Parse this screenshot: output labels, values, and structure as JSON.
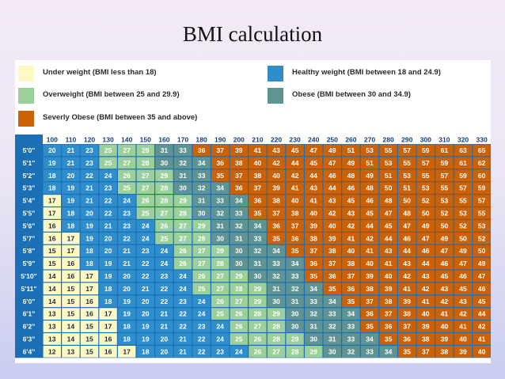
{
  "slide": {
    "title": "BMI calculation"
  },
  "colors": {
    "underweight": "#fdf8c4",
    "healthy": "#2f8dcc",
    "overweight": "#9cd09a",
    "obese": "#5f9493",
    "severe": "#cb6208",
    "header_row": "#ffffff"
  },
  "legend": [
    {
      "key": "underweight",
      "label": "Under weight (BMI less than 18)"
    },
    {
      "key": "healthy",
      "label": "Healthy weight (BMI between 18 and 24.9)"
    },
    {
      "key": "overweight",
      "label": "Overweight (BMI between 25 and 29.9)"
    },
    {
      "key": "obese",
      "label": "Obese (BMI between 30 and 34.9)"
    },
    {
      "key": "severe",
      "label": "Severly Obese (BMI between 35 and above)"
    }
  ],
  "chart_data": {
    "type": "table",
    "weights_lbs": [
      100,
      110,
      120,
      130,
      140,
      150,
      160,
      170,
      180,
      190,
      200,
      210,
      220,
      230,
      240,
      250,
      260,
      270,
      280,
      290,
      300,
      310,
      320,
      330
    ],
    "heights": [
      "5'0\"",
      "5'1\"",
      "5'2\"",
      "5'3\"",
      "5'4\"",
      "5'5\"",
      "5'6\"",
      "5'7\"",
      "5'8\"",
      "5'9\"",
      "5'10\"",
      "5'11\"",
      "6'0\"",
      "6'1\"",
      "6'2\"",
      "6'3\"",
      "6'4\""
    ],
    "bmi": [
      [
        20,
        21,
        23,
        25,
        27,
        29,
        31,
        33,
        36,
        37,
        39,
        41,
        43,
        45,
        47,
        49,
        51,
        53,
        55,
        57,
        59,
        61,
        63,
        65
      ],
      [
        19,
        21,
        23,
        25,
        27,
        28,
        30,
        32,
        34,
        36,
        38,
        40,
        42,
        44,
        45,
        47,
        49,
        51,
        53,
        55,
        57,
        59,
        61,
        62
      ],
      [
        18,
        20,
        22,
        24,
        26,
        27,
        29,
        31,
        33,
        35,
        37,
        38,
        40,
        42,
        44,
        46,
        48,
        49,
        51,
        53,
        55,
        57,
        59,
        60
      ],
      [
        18,
        19,
        21,
        23,
        25,
        27,
        28,
        30,
        32,
        34,
        36,
        37,
        39,
        41,
        43,
        44,
        46,
        48,
        50,
        51,
        53,
        55,
        57,
        59
      ],
      [
        17,
        19,
        21,
        22,
        24,
        26,
        28,
        29,
        31,
        33,
        34,
        36,
        38,
        40,
        41,
        43,
        45,
        46,
        48,
        50,
        52,
        53,
        55,
        57
      ],
      [
        17,
        18,
        20,
        22,
        23,
        25,
        27,
        28,
        30,
        32,
        33,
        35,
        37,
        38,
        40,
        42,
        43,
        45,
        47,
        48,
        50,
        52,
        53,
        55
      ],
      [
        16,
        18,
        19,
        21,
        23,
        24,
        26,
        27,
        29,
        31,
        32,
        34,
        36,
        37,
        39,
        40,
        42,
        44,
        45,
        47,
        49,
        50,
        52,
        53
      ],
      [
        16,
        17,
        19,
        20,
        22,
        24,
        25,
        27,
        28,
        30,
        31,
        33,
        35,
        36,
        38,
        39,
        41,
        42,
        44,
        46,
        47,
        49,
        50,
        52
      ],
      [
        15,
        17,
        18,
        20,
        21,
        23,
        24,
        26,
        27,
        29,
        30,
        32,
        34,
        35,
        37,
        38,
        40,
        41,
        43,
        44,
        46,
        47,
        49,
        50
      ],
      [
        15,
        16,
        18,
        19,
        21,
        22,
        24,
        26,
        27,
        28,
        30,
        31,
        33,
        34,
        36,
        37,
        38,
        40,
        41,
        43,
        44,
        46,
        47,
        49
      ],
      [
        14,
        16,
        17,
        19,
        20,
        22,
        23,
        24,
        26,
        27,
        29,
        30,
        32,
        33,
        35,
        36,
        37,
        39,
        40,
        42,
        43,
        45,
        46,
        47
      ],
      [
        14,
        15,
        17,
        18,
        20,
        21,
        22,
        24,
        25,
        27,
        28,
        29,
        31,
        32,
        34,
        35,
        36,
        38,
        39,
        41,
        42,
        43,
        45,
        46
      ],
      [
        14,
        15,
        16,
        18,
        19,
        20,
        22,
        23,
        24,
        26,
        27,
        29,
        30,
        31,
        33,
        34,
        35,
        37,
        38,
        39,
        41,
        42,
        43,
        45
      ],
      [
        13,
        15,
        16,
        17,
        19,
        20,
        21,
        22,
        24,
        25,
        26,
        28,
        29,
        30,
        32,
        33,
        34,
        36,
        37,
        38,
        40,
        41,
        42,
        44
      ],
      [
        13,
        14,
        15,
        17,
        18,
        19,
        21,
        22,
        23,
        24,
        26,
        27,
        28,
        30,
        31,
        32,
        33,
        35,
        36,
        37,
        39,
        40,
        41,
        42
      ],
      [
        13,
        14,
        15,
        16,
        18,
        19,
        20,
        21,
        22,
        24,
        25,
        26,
        28,
        29,
        30,
        31,
        33,
        34,
        35,
        36,
        38,
        39,
        40,
        41
      ],
      [
        12,
        13,
        15,
        16,
        17,
        18,
        20,
        21,
        22,
        23,
        24,
        26,
        27,
        28,
        29,
        30,
        32,
        33,
        34,
        35,
        37,
        38,
        39,
        40
      ]
    ]
  }
}
